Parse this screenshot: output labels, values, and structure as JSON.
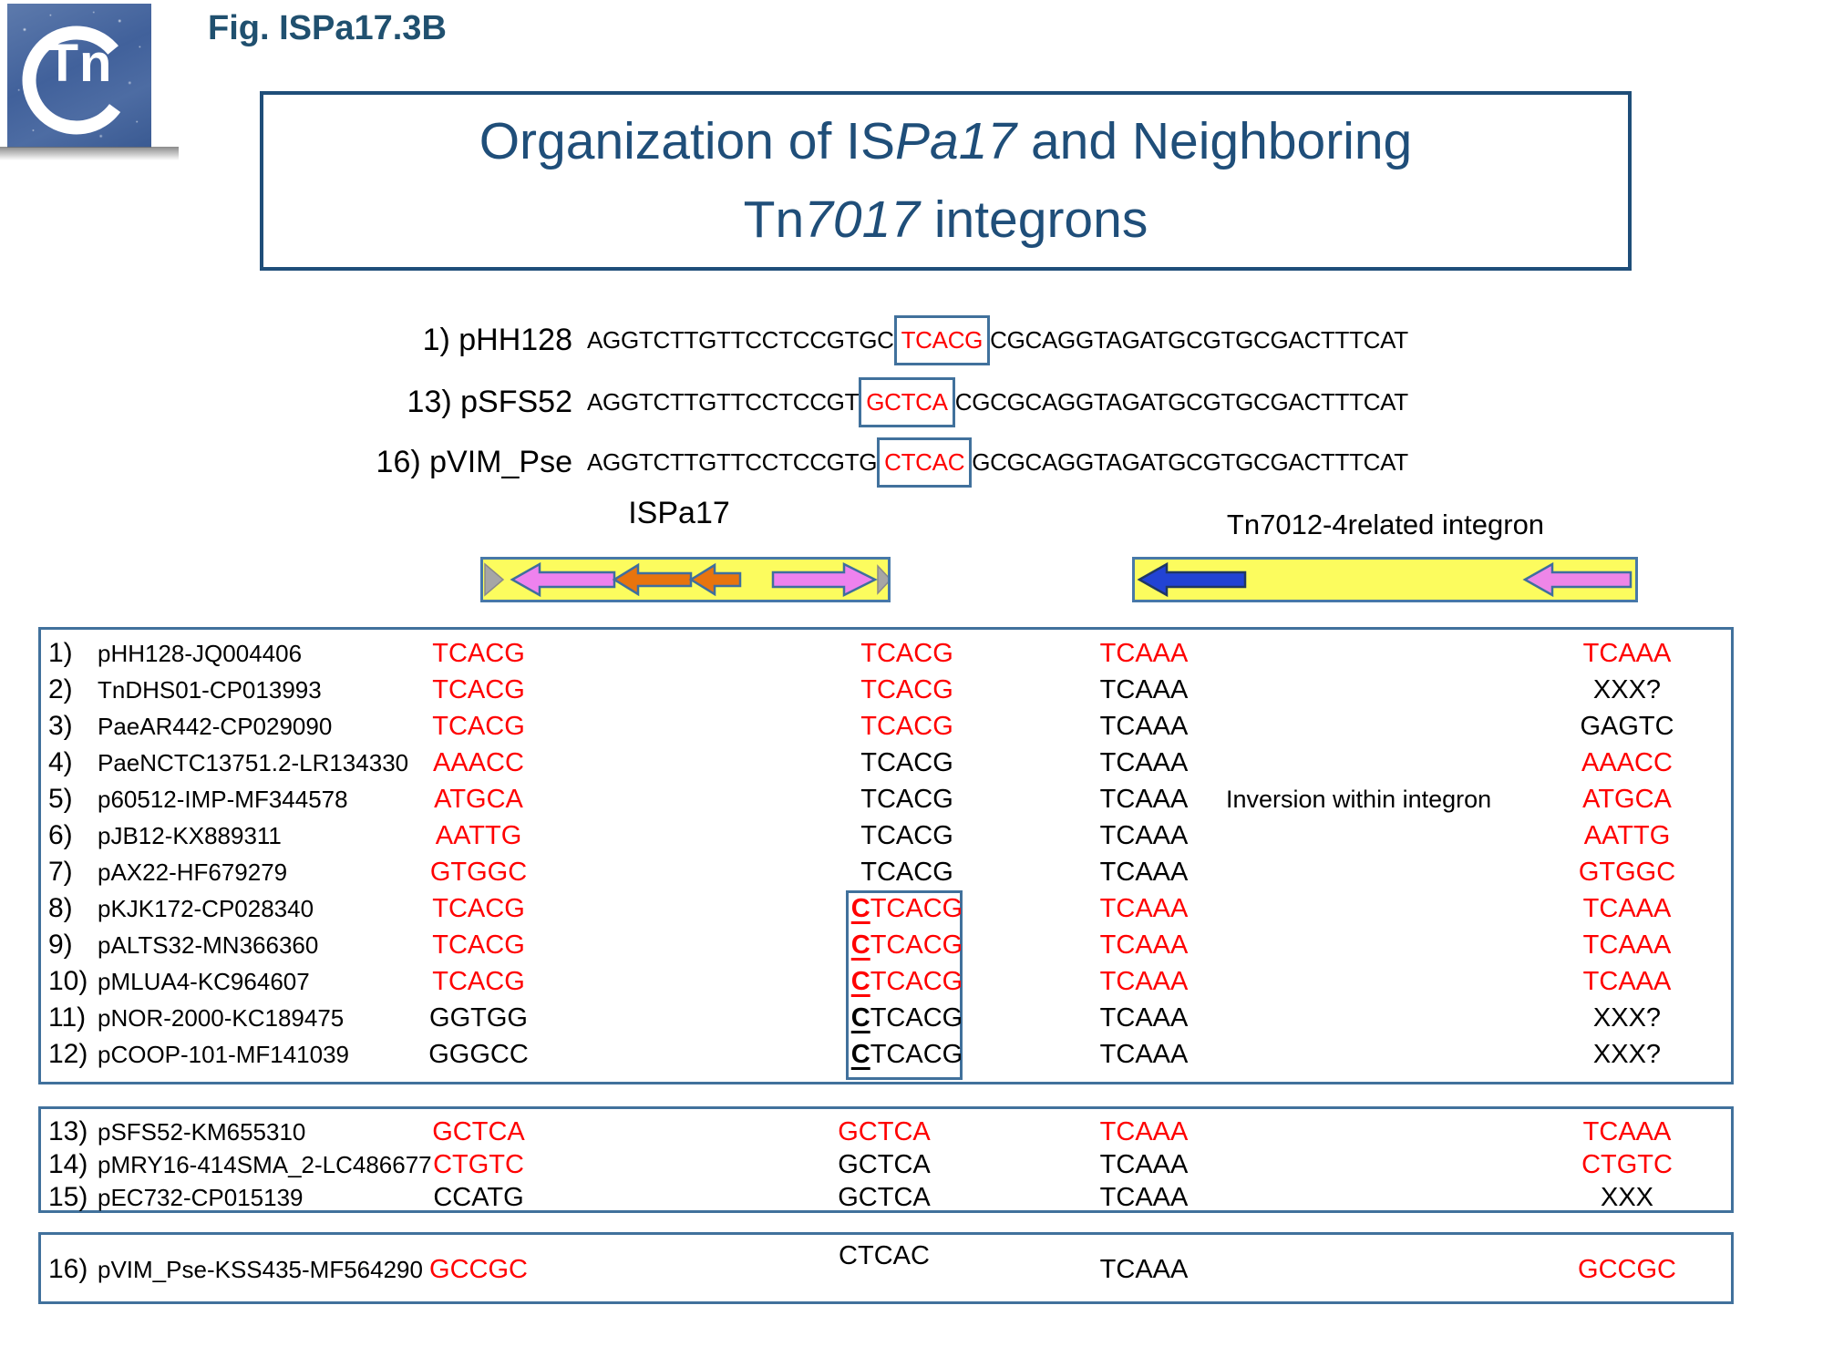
{
  "slide": {
    "fig_label": "Fig. ISPa17.3B",
    "logo_text": "Tn",
    "title": {
      "l1a": "Organization of IS",
      "l1b": "Pa17",
      "l1c": " and Neighboring",
      "l2a": "Tn",
      "l2b": "7017",
      "l2c": " integrons"
    }
  },
  "sequence_lines": [
    {
      "label": "1) pHH128",
      "pre": "AGGTCTTGTTCCTCCGTGC",
      "boxed": "TCACG",
      "post": "CGCAGGTAGATGCGTGCGACTTTCAT"
    },
    {
      "label": "13) pSFS52",
      "pre": "AGGTCTTGTTCCTCCGT",
      "boxed": "GCTCA",
      "post": "CGCGCAGGTAGATGCGTGCGACTTTCAT"
    },
    {
      "label": "16) pVIM_Pse",
      "pre": "AGGTCTTGTTCCTCCGTG",
      "boxed": "CTCAC",
      "post": "GCGCAGGTAGATGCGTGCGACTTTCAT"
    }
  ],
  "diagram": {
    "left_label": "ISPa17",
    "right_label": "Tn7012-4related integron",
    "colors": {
      "bar_yellow": "#FCFC5E",
      "arrow_violet": "#EE82EE",
      "arrow_orange": "#E8740E",
      "arrow_blue": "#2243D4",
      "end_gray": "#A6A6A6",
      "outline_blue": "#41719C"
    }
  },
  "colors": {
    "red": "#FF0000",
    "navy": "#1F4E79",
    "border_blue": "#41719C"
  },
  "tables": [
    {
      "id": "t1",
      "rows": [
        {
          "n": "1)",
          "name": "pHH128-JQ004406",
          "c1": {
            "t": "TCACG",
            "red": true
          },
          "c2": {
            "t": "TCACG",
            "red": true
          },
          "c3": {
            "t": "TCAAA",
            "red": true
          },
          "c4": {
            "t": "TCAAA",
            "red": true
          }
        },
        {
          "n": "2)",
          "name": "TnDHS01-CP013993",
          "c1": {
            "t": "TCACG",
            "red": true
          },
          "c2": {
            "t": "TCACG",
            "red": true
          },
          "c3": {
            "t": "TCAAA"
          },
          "c4": {
            "t": "XXX?"
          }
        },
        {
          "n": "3)",
          "name": "PaeAR442-CP029090",
          "c1": {
            "t": "TCACG",
            "red": true
          },
          "c2": {
            "t": "TCACG",
            "red": true
          },
          "c3": {
            "t": "TCAAA"
          },
          "c4": {
            "t": "GAGTC"
          }
        },
        {
          "n": "4)",
          "name": "PaeNCTC13751.2-LR134330",
          "c1": {
            "t": "AAACC",
            "red": true
          },
          "c2": {
            "t": "TCACG"
          },
          "c3": {
            "t": "TCAAA"
          },
          "c4": {
            "t": "AAACC",
            "red": true
          }
        },
        {
          "n": "5)",
          "name": "p60512-IMP-MF344578",
          "c1": {
            "t": "ATGCA",
            "red": true
          },
          "c2": {
            "t": "TCACG"
          },
          "c3": {
            "t": "TCAAA"
          },
          "note": "Inversion within integron",
          "c4": {
            "t": "ATGCA",
            "red": true
          }
        },
        {
          "n": "6)",
          "name": "pJB12-KX889311",
          "c1": {
            "t": "AATTG",
            "red": true
          },
          "c2": {
            "t": "TCACG"
          },
          "c3": {
            "t": "TCAAA"
          },
          "c4": {
            "t": "AATTG",
            "red": true
          }
        },
        {
          "n": "7)",
          "name": "pAX22-HF679279",
          "c1": {
            "t": "GTGGC",
            "red": true
          },
          "c2": {
            "t": "TCACG"
          },
          "c3": {
            "t": "TCAAA"
          },
          "c4": {
            "t": "GTGGC",
            "red": true
          }
        },
        {
          "n": "8)",
          "name": "pKJK172-CP028340",
          "c1": {
            "t": "TCACG",
            "red": true
          },
          "c2": {
            "lead": "C",
            "t": "TCACG",
            "red": true
          },
          "c3": {
            "t": "TCAAA",
            "red": true
          },
          "c4": {
            "t": "TCAAA",
            "red": true
          }
        },
        {
          "n": "9)",
          "name": "pALTS32-MN366360",
          "c1": {
            "t": "TCACG",
            "red": true
          },
          "c2": {
            "lead": "C",
            "t": "TCACG",
            "red": true
          },
          "c3": {
            "t": "TCAAA",
            "red": true
          },
          "c4": {
            "t": "TCAAA",
            "red": true
          }
        },
        {
          "n": "10)",
          "name": "pMLUA4-KC964607",
          "c1": {
            "t": "TCACG",
            "red": true
          },
          "c2": {
            "lead": "C",
            "t": "TCACG",
            "red": true
          },
          "c3": {
            "t": "TCAAA",
            "red": true
          },
          "c4": {
            "t": "TCAAA",
            "red": true
          }
        },
        {
          "n": "11)",
          "name": "pNOR-2000-KC189475",
          "c1": {
            "t": "GGTGG"
          },
          "c2": {
            "lead": "C",
            "t": "TCACG"
          },
          "c3": {
            "t": "TCAAA"
          },
          "c4": {
            "t": "XXX?"
          }
        },
        {
          "n": "12)",
          "name": "pCOOP-101-MF141039",
          "c1": {
            "t": "GGGCC"
          },
          "c2": {
            "lead": "C",
            "t": "TCACG"
          },
          "c3": {
            "t": "TCAAA"
          },
          "c4": {
            "t": "XXX?"
          }
        }
      ]
    },
    {
      "id": "t2",
      "rows": [
        {
          "n": "13)",
          "name": "pSFS52-KM655310",
          "c1": {
            "t": "GCTCA",
            "red": true
          },
          "c2": {
            "t": "GCTCA",
            "red": true
          },
          "c3": {
            "t": "TCAAA",
            "red": true
          },
          "c4": {
            "t": "TCAAA",
            "red": true
          }
        },
        {
          "n": "14)",
          "name": "pMRY16-414SMA_2-LC486677",
          "c1": {
            "t": "CTGTC",
            "red": true
          },
          "c2": {
            "t": "GCTCA"
          },
          "c3": {
            "t": "TCAAA"
          },
          "c4": {
            "t": "CTGTC",
            "red": true
          }
        },
        {
          "n": "15)",
          "name": "pEC732-CP015139",
          "c1": {
            "t": "CCATG"
          },
          "c2": {
            "t": "GCTCA"
          },
          "c3": {
            "t": "TCAAA"
          },
          "c4": {
            "t": "XXX"
          }
        }
      ]
    },
    {
      "id": "t3",
      "rows": [
        {
          "n": "16)",
          "name": "pVIM_Pse-KSS435-MF564290",
          "c1": {
            "t": "GCCGC",
            "red": true
          },
          "c2": {
            "t": "CTCAC"
          },
          "c3": {
            "t": "TCAAA"
          },
          "c4": {
            "t": "GCCGC",
            "red": true
          }
        }
      ]
    }
  ]
}
